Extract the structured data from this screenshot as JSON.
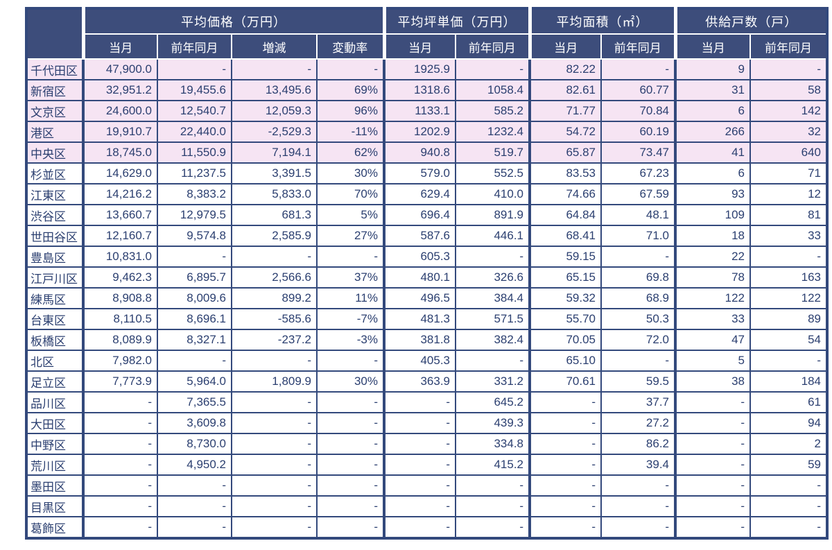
{
  "colors": {
    "header_bg": "#3d4d7b",
    "header_text": "#ffffff",
    "cell_border": "#33497c",
    "cell_text": "#2b3f70",
    "highlight_row_bg": "#f6e4f3",
    "row_bg": "#ffffff"
  },
  "chart_data": {
    "type": "table",
    "groups": [
      {
        "label": "平均価格（万円）",
        "sub": [
          "当月",
          "前年同月",
          "増減",
          "変動率"
        ]
      },
      {
        "label": "平均坪単価（万円）",
        "sub": [
          "当月",
          "前年同月"
        ]
      },
      {
        "label": "平均面積（㎡）",
        "sub": [
          "当月",
          "前年同月"
        ]
      },
      {
        "label": "供給戸数（戸）",
        "sub": [
          "当月",
          "前年同月"
        ]
      }
    ],
    "row_header_label": "",
    "rows": [
      {
        "ward": "千代田区",
        "highlight": true,
        "values": [
          "47,900.0",
          "-",
          "-",
          "-",
          "1925.9",
          "-",
          "82.22",
          "-",
          "9",
          "-"
        ]
      },
      {
        "ward": "新宿区",
        "highlight": true,
        "values": [
          "32,951.2",
          "19,455.6",
          "13,495.6",
          "69%",
          "1318.6",
          "1058.4",
          "82.61",
          "60.77",
          "31",
          "58"
        ]
      },
      {
        "ward": "文京区",
        "highlight": true,
        "values": [
          "24,600.0",
          "12,540.7",
          "12,059.3",
          "96%",
          "1133.1",
          "585.2",
          "71.77",
          "70.84",
          "6",
          "142"
        ]
      },
      {
        "ward": "港区",
        "highlight": true,
        "values": [
          "19,910.7",
          "22,440.0",
          "-2,529.3",
          "-11%",
          "1202.9",
          "1232.4",
          "54.72",
          "60.19",
          "266",
          "32"
        ]
      },
      {
        "ward": "中央区",
        "highlight": true,
        "values": [
          "18,745.0",
          "11,550.9",
          "7,194.1",
          "62%",
          "940.8",
          "519.7",
          "65.87",
          "73.47",
          "41",
          "640"
        ]
      },
      {
        "ward": "杉並区",
        "highlight": false,
        "values": [
          "14,629.0",
          "11,237.5",
          "3,391.5",
          "30%",
          "579.0",
          "552.5",
          "83.53",
          "67.23",
          "6",
          "71"
        ]
      },
      {
        "ward": "江東区",
        "highlight": false,
        "values": [
          "14,216.2",
          "8,383.2",
          "5,833.0",
          "70%",
          "629.4",
          "410.0",
          "74.66",
          "67.59",
          "93",
          "12"
        ]
      },
      {
        "ward": "渋谷区",
        "highlight": false,
        "values": [
          "13,660.7",
          "12,979.5",
          "681.3",
          "5%",
          "696.4",
          "891.9",
          "64.84",
          "48.1",
          "109",
          "81"
        ]
      },
      {
        "ward": "世田谷区",
        "highlight": false,
        "values": [
          "12,160.7",
          "9,574.8",
          "2,585.9",
          "27%",
          "587.6",
          "446.1",
          "68.41",
          "71.0",
          "18",
          "33"
        ]
      },
      {
        "ward": "豊島区",
        "highlight": false,
        "values": [
          "10,831.0",
          "-",
          "-",
          "-",
          "605.3",
          "-",
          "59.15",
          "-",
          "22",
          "-"
        ]
      },
      {
        "ward": "江戸川区",
        "highlight": false,
        "values": [
          "9,462.3",
          "6,895.7",
          "2,566.6",
          "37%",
          "480.1",
          "326.6",
          "65.15",
          "69.8",
          "78",
          "163"
        ]
      },
      {
        "ward": "練馬区",
        "highlight": false,
        "values": [
          "8,908.8",
          "8,009.6",
          "899.2",
          "11%",
          "496.5",
          "384.4",
          "59.32",
          "68.9",
          "122",
          "122"
        ]
      },
      {
        "ward": "台東区",
        "highlight": false,
        "values": [
          "8,110.5",
          "8,696.1",
          "-585.6",
          "-7%",
          "481.3",
          "571.5",
          "55.70",
          "50.3",
          "33",
          "89"
        ]
      },
      {
        "ward": "板橋区",
        "highlight": false,
        "values": [
          "8,089.9",
          "8,327.1",
          "-237.2",
          "-3%",
          "381.8",
          "382.4",
          "70.05",
          "72.0",
          "47",
          "54"
        ]
      },
      {
        "ward": "北区",
        "highlight": false,
        "values": [
          "7,982.0",
          "-",
          "-",
          "-",
          "405.3",
          "-",
          "65.10",
          "-",
          "5",
          "-"
        ]
      },
      {
        "ward": "足立区",
        "highlight": false,
        "values": [
          "7,773.9",
          "5,964.0",
          "1,809.9",
          "30%",
          "363.9",
          "331.2",
          "70.61",
          "59.5",
          "38",
          "184"
        ]
      },
      {
        "ward": "品川区",
        "highlight": false,
        "values": [
          "-",
          "7,365.5",
          "-",
          "-",
          "-",
          "645.2",
          "-",
          "37.7",
          "-",
          "61"
        ]
      },
      {
        "ward": "大田区",
        "highlight": false,
        "values": [
          "-",
          "3,609.8",
          "-",
          "-",
          "-",
          "439.3",
          "-",
          "27.2",
          "-",
          "94"
        ]
      },
      {
        "ward": "中野区",
        "highlight": false,
        "values": [
          "-",
          "8,730.0",
          "-",
          "-",
          "-",
          "334.8",
          "-",
          "86.2",
          "-",
          "2"
        ]
      },
      {
        "ward": "荒川区",
        "highlight": false,
        "values": [
          "-",
          "4,950.2",
          "-",
          "-",
          "-",
          "415.2",
          "-",
          "39.4",
          "-",
          "59"
        ]
      },
      {
        "ward": "墨田区",
        "highlight": false,
        "values": [
          "-",
          "-",
          "-",
          "-",
          "-",
          "-",
          "-",
          "-",
          "-",
          "-"
        ]
      },
      {
        "ward": "目黒区",
        "highlight": false,
        "values": [
          "-",
          "-",
          "-",
          "-",
          "-",
          "-",
          "-",
          "-",
          "-",
          "-"
        ]
      },
      {
        "ward": "葛飾区",
        "highlight": false,
        "values": [
          "-",
          "-",
          "-",
          "-",
          "-",
          "-",
          "-",
          "-",
          "-",
          "-"
        ]
      }
    ]
  }
}
